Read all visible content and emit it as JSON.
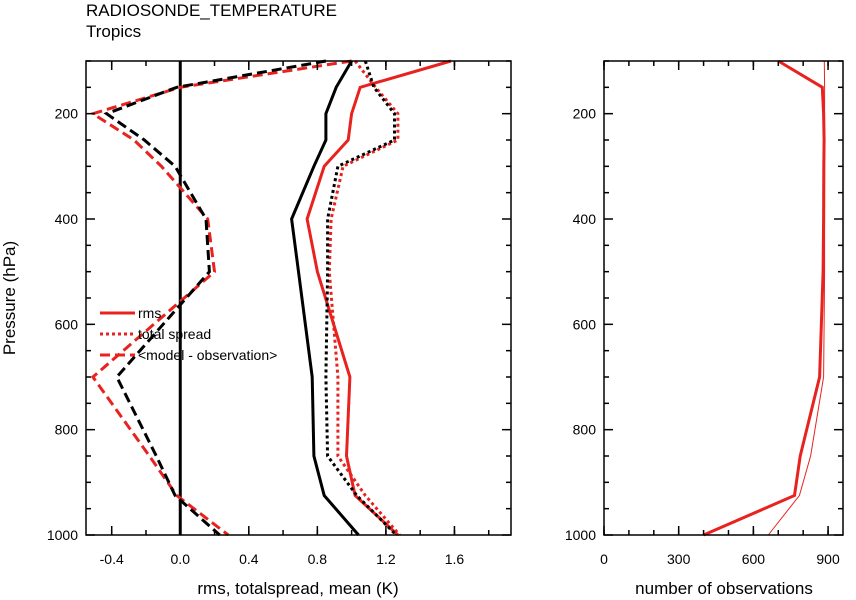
{
  "title": "RADIOSONDE_TEMPERATURE",
  "subtitle": "Tropics",
  "colors": {
    "exp1": "#e8231f",
    "exp2": "#000000"
  },
  "chart_data": [
    {
      "type": "line",
      "xlabel": "rms, totalspread, mean (K)",
      "ylabel": "Pressure (hPa)",
      "xlim": [
        -0.55,
        1.93
      ],
      "ylim": [
        1000,
        100
      ],
      "x_ticks": [
        "-0.4",
        "0.0",
        "0.4",
        "0.8",
        "1.2",
        "1.6"
      ],
      "y_ticks": [
        "200",
        "400",
        "600",
        "800",
        "1000"
      ],
      "zero_line": 0,
      "legend": {
        "position": "left",
        "entries": [
          "rms",
          "total spread",
          "<model - observation>"
        ]
      },
      "pressure_levels": [
        100,
        150,
        200,
        250,
        300,
        400,
        500,
        700,
        850,
        925,
        1000
      ],
      "series": [
        {
          "color": "#e8231f",
          "style": "solid",
          "x": [
            1.58,
            1.05,
            1.0,
            0.98,
            0.84,
            0.74,
            0.8,
            0.99,
            0.97,
            1.02,
            1.27
          ]
        },
        {
          "color": "#e8231f",
          "style": "dotted",
          "x": [
            1.02,
            1.14,
            1.27,
            1.27,
            0.95,
            0.88,
            0.87,
            0.92,
            0.92,
            1.08,
            1.28
          ]
        },
        {
          "color": "#e8231f",
          "style": "dashed",
          "x": [
            1.0,
            0.0,
            -0.51,
            -0.27,
            -0.11,
            0.16,
            0.2,
            -0.51,
            -0.18,
            -0.02,
            0.28
          ]
        },
        {
          "color": "#000000",
          "style": "solid",
          "x": [
            1.0,
            0.91,
            0.85,
            0.85,
            0.78,
            0.65,
            0.69,
            0.77,
            0.78,
            0.84,
            1.04
          ]
        },
        {
          "color": "#000000",
          "style": "dotted",
          "x": [
            1.08,
            1.13,
            1.25,
            1.25,
            0.92,
            0.86,
            0.86,
            0.85,
            0.86,
            1.03,
            1.26
          ]
        },
        {
          "color": "#000000",
          "style": "dashed",
          "x": [
            0.85,
            -0.02,
            -0.43,
            -0.21,
            -0.03,
            0.15,
            0.17,
            -0.37,
            -0.14,
            -0.03,
            0.23
          ]
        }
      ]
    },
    {
      "type": "line",
      "xlabel": "number of observations",
      "ylabel": "",
      "xlim": [
        0,
        960
      ],
      "ylim": [
        1000,
        100
      ],
      "x_ticks": [
        "0",
        "300",
        "600",
        "900"
      ],
      "y_ticks": [
        "200",
        "400",
        "600",
        "800",
        "1000"
      ],
      "pressure_levels": [
        100,
        150,
        200,
        250,
        300,
        400,
        500,
        700,
        850,
        925,
        1000
      ],
      "series": [
        {
          "color": "#e8231f",
          "style": "solid",
          "width": 3,
          "x": [
            700,
            877,
            882,
            884,
            883,
            882,
            880,
            866,
            788,
            765,
            400
          ]
        },
        {
          "color": "#e8231f",
          "style": "solid",
          "width": 1,
          "x": [
            885,
            886,
            886,
            886,
            886,
            886,
            886,
            882,
            830,
            785,
            660
          ]
        }
      ]
    }
  ]
}
